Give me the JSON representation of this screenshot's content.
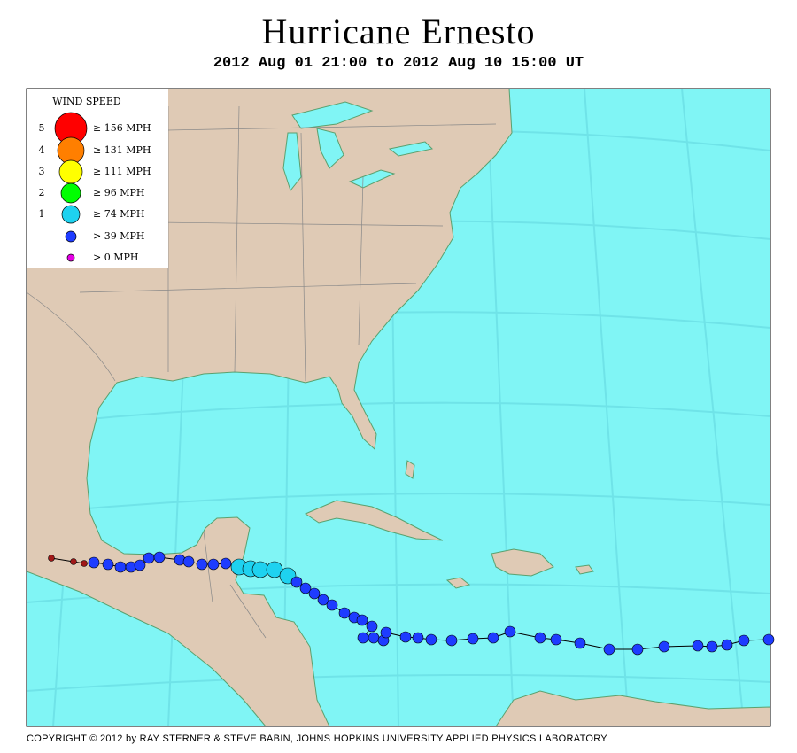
{
  "header": {
    "title": "Hurricane Ernesto",
    "subtitle": "2012 Aug 01 21:00 to 2012 Aug 10 15:00 UT"
  },
  "legend": {
    "title": "WIND SPEED",
    "entries": [
      {
        "category": "5",
        "label": "≥ 156 MPH",
        "color": "#ff0000"
      },
      {
        "category": "4",
        "label": "≥ 131 MPH",
        "color": "#ff7f00"
      },
      {
        "category": "3",
        "label": "≥ 111 MPH",
        "color": "#ffff00"
      },
      {
        "category": "2",
        "label": "≥ 96 MPH",
        "color": "#00ff00"
      },
      {
        "category": "1",
        "label": "≥ 74 MPH",
        "color": "#1ed2f0"
      },
      {
        "label": "> 39 MPH",
        "color": "#1e3cff"
      },
      {
        "label": "> 0 MPH",
        "color": "#e600e6"
      }
    ]
  },
  "footer": "COPYRIGHT © 2012 by RAY STERNER & STEVE BABIN, JOHNS HOPKINS UNIVERSITY APPLIED PHYSICS LABORATORY"
}
